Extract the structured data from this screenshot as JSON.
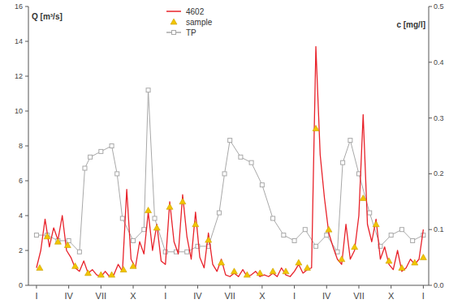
{
  "chart_data": {
    "type": "line",
    "ylabel": "Q [m³/s]",
    "y2label": "c [mg/l]",
    "xlim": [
      -0.75,
      36.5
    ],
    "xticks": [
      {
        "value": 0,
        "label": "I"
      },
      {
        "value": 3,
        "label": "IV"
      },
      {
        "value": 6,
        "label": "VII"
      },
      {
        "value": 9,
        "label": "X"
      },
      {
        "value": 12,
        "label": "I"
      },
      {
        "value": 15,
        "label": "IV"
      },
      {
        "value": 18,
        "label": "VII"
      },
      {
        "value": 21,
        "label": "X"
      },
      {
        "value": 24,
        "label": "I"
      },
      {
        "value": 27,
        "label": "IV"
      },
      {
        "value": 30,
        "label": "VII"
      },
      {
        "value": 33,
        "label": "X"
      },
      {
        "value": 36,
        "label": "I"
      }
    ],
    "ylim": [
      0,
      16
    ],
    "yticks": [
      0,
      2,
      4,
      6,
      8,
      10,
      12,
      14,
      16
    ],
    "y2lim": [
      0,
      0.5
    ],
    "y2ticks": [
      {
        "value": 0,
        "label": "0.0"
      },
      0.1,
      0.2,
      0.3,
      0.4,
      0.5
    ],
    "grid": false,
    "legend": "top",
    "series": [
      {
        "name": "4602",
        "type": "line",
        "color": "#e8222a",
        "marker": "none",
        "x": [
          0,
          0.4,
          0.8,
          1.2,
          1.6,
          2.0,
          2.4,
          2.8,
          3.2,
          3.6,
          4.0,
          4.4,
          4.8,
          5.2,
          5.6,
          6.0,
          6.4,
          6.8,
          7.2,
          7.6,
          8.0,
          8.4,
          8.8,
          9.2,
          9.6,
          10.0,
          10.4,
          10.8,
          11.2,
          11.6,
          12.0,
          12.4,
          12.8,
          13.2,
          13.6,
          14.0,
          14.4,
          14.8,
          15.2,
          15.6,
          16.0,
          16.4,
          16.8,
          17.2,
          17.6,
          18.0,
          18.4,
          18.8,
          19.2,
          19.6,
          20.0,
          20.4,
          20.8,
          21.2,
          21.6,
          22.0,
          22.4,
          22.8,
          23.2,
          23.6,
          24.0,
          24.4,
          24.8,
          25.2,
          25.6,
          26.0,
          26.4,
          26.8,
          27.2,
          27.6,
          28.0,
          28.4,
          28.8,
          29.2,
          29.6,
          30.0,
          30.4,
          30.8,
          31.2,
          31.6,
          32.0,
          32.4,
          32.8,
          33.2,
          33.6,
          34.0,
          34.4,
          34.8,
          35.2,
          35.6,
          36.0
        ],
        "values": [
          1.0,
          2.0,
          3.8,
          2.2,
          3.3,
          2.6,
          4.0,
          2.0,
          1.6,
          1.0,
          0.8,
          1.4,
          0.7,
          0.9,
          0.6,
          0.5,
          0.8,
          0.5,
          0.6,
          1.2,
          0.8,
          5.5,
          1.5,
          1.0,
          2.5,
          1.8,
          4.2,
          2.0,
          3.5,
          1.4,
          1.2,
          4.8,
          2.5,
          1.8,
          5.2,
          2.8,
          1.5,
          4.2,
          1.6,
          1.0,
          3.0,
          1.2,
          0.8,
          1.5,
          0.6,
          0.5,
          0.7,
          0.5,
          0.9,
          0.5,
          0.6,
          0.8,
          0.5,
          0.6,
          0.5,
          0.7,
          0.5,
          1.0,
          0.6,
          0.5,
          0.8,
          1.2,
          0.7,
          0.9,
          1.0,
          13.7,
          7.5,
          5.0,
          3.0,
          2.2,
          1.5,
          1.2,
          3.5,
          1.5,
          2.0,
          4.0,
          9.8,
          3.5,
          2.5,
          3.8,
          1.5,
          2.2,
          1.2,
          0.9,
          2.0,
          0.8,
          1.0,
          1.5,
          1.2,
          1.5,
          3.2
        ]
      },
      {
        "name": "sample",
        "type": "scatter",
        "color": "#f2c500",
        "marker": "triangle",
        "x": [
          0.3,
          1.0,
          2.0,
          2.9,
          3.6,
          4.8,
          6.0,
          7.0,
          8.1,
          9.0,
          10.4,
          11.2,
          12.4,
          13.6,
          14.8,
          16.0,
          17.2,
          18.4,
          19.6,
          20.8,
          22.0,
          23.2,
          24.4,
          25.2,
          26.0,
          27.2,
          28.4,
          29.6,
          30.4,
          31.6,
          32.8,
          34.0,
          35.2,
          36.0
        ],
        "values": [
          1.0,
          2.8,
          2.5,
          2.3,
          1.1,
          0.7,
          0.6,
          0.6,
          0.9,
          1.1,
          4.3,
          3.3,
          4.5,
          4.8,
          3.5,
          2.6,
          1.3,
          0.8,
          0.6,
          0.7,
          0.8,
          0.8,
          1.3,
          1.0,
          9.0,
          3.2,
          1.5,
          2.2,
          5.0,
          3.5,
          1.4,
          1.0,
          1.3,
          1.6
        ]
      },
      {
        "name": "TP",
        "type": "line",
        "axis": "y2",
        "color": "#a8a8a8",
        "marker": "square",
        "x": [
          0,
          1,
          2,
          3,
          4,
          4.5,
          5,
          6,
          7,
          7.5,
          8,
          9,
          10,
          10.4,
          11,
          12,
          13,
          14,
          15,
          16,
          17,
          17.5,
          18,
          19,
          20,
          21,
          22,
          23,
          24,
          25,
          26,
          27,
          28,
          28.5,
          29.2,
          30,
          31,
          32,
          33,
          34,
          35,
          36
        ],
        "values": [
          0.09,
          0.09,
          0.08,
          0.08,
          0.06,
          0.21,
          0.23,
          0.24,
          0.25,
          0.2,
          0.12,
          0.08,
          0.1,
          0.35,
          0.12,
          0.06,
          0.06,
          0.06,
          0.07,
          0.07,
          0.13,
          0.2,
          0.26,
          0.23,
          0.22,
          0.18,
          0.12,
          0.09,
          0.08,
          0.1,
          0.07,
          0.09,
          0.06,
          0.22,
          0.26,
          0.2,
          0.13,
          0.07,
          0.09,
          0.1,
          0.08,
          0.09
        ]
      }
    ]
  }
}
